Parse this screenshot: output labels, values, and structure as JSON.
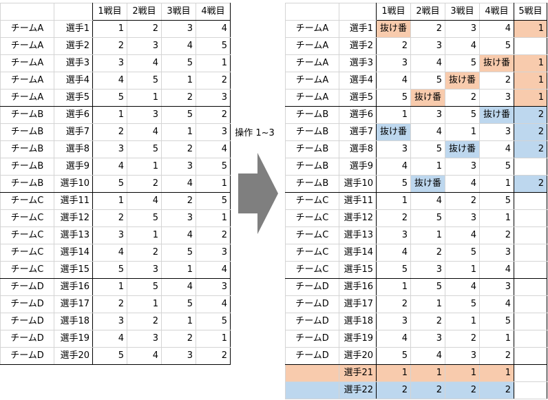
{
  "colors": {
    "orange": "#f8cbad",
    "blue": "#bdd7ee",
    "arrow": "#7f7f7f"
  },
  "headers": [
    "1戦目",
    "2戦目",
    "3戦目",
    "4戦目"
  ],
  "headers_right": [
    "1戦目",
    "2戦目",
    "3戦目",
    "4戦目",
    "5戦目"
  ],
  "operation_label": "操作 1~3",
  "arrow_icon": "right-arrow-icon",
  "left_rows": [
    [
      "チームA",
      "選手1",
      "1",
      "2",
      "3",
      "4"
    ],
    [
      "チームA",
      "選手2",
      "2",
      "3",
      "4",
      "5"
    ],
    [
      "チームA",
      "選手3",
      "3",
      "4",
      "5",
      "1"
    ],
    [
      "チームA",
      "選手4",
      "4",
      "5",
      "1",
      "2"
    ],
    [
      "チームA",
      "選手5",
      "5",
      "1",
      "2",
      "3"
    ],
    [
      "チームB",
      "選手6",
      "1",
      "3",
      "5",
      "2"
    ],
    [
      "チームB",
      "選手7",
      "2",
      "4",
      "1",
      "3"
    ],
    [
      "チームB",
      "選手8",
      "3",
      "5",
      "2",
      "4"
    ],
    [
      "チームB",
      "選手9",
      "4",
      "1",
      "3",
      "5"
    ],
    [
      "チームB",
      "選手10",
      "5",
      "2",
      "4",
      "1"
    ],
    [
      "チームC",
      "選手11",
      "1",
      "4",
      "2",
      "5"
    ],
    [
      "チームC",
      "選手12",
      "2",
      "5",
      "3",
      "1"
    ],
    [
      "チームC",
      "選手13",
      "3",
      "1",
      "4",
      "2"
    ],
    [
      "チームC",
      "選手14",
      "4",
      "2",
      "5",
      "3"
    ],
    [
      "チームC",
      "選手15",
      "5",
      "3",
      "1",
      "4"
    ],
    [
      "チームD",
      "選手16",
      "1",
      "5",
      "4",
      "3"
    ],
    [
      "チームD",
      "選手17",
      "2",
      "1",
      "5",
      "4"
    ],
    [
      "チームD",
      "選手18",
      "3",
      "2",
      "1",
      "5"
    ],
    [
      "チームD",
      "選手19",
      "4",
      "3",
      "2",
      "1"
    ],
    [
      "チームD",
      "選手20",
      "5",
      "4",
      "3",
      "2"
    ]
  ],
  "right_rows": [
    [
      "チームA",
      "選手1",
      "抜け番",
      "2",
      "3",
      "4",
      "1"
    ],
    [
      "チームA",
      "選手2",
      "2",
      "3",
      "4",
      "5",
      ""
    ],
    [
      "チームA",
      "選手3",
      "3",
      "4",
      "5",
      "抜け番",
      "1"
    ],
    [
      "チームA",
      "選手4",
      "4",
      "5",
      "抜け番",
      "2",
      "1"
    ],
    [
      "チームA",
      "選手5",
      "5",
      "抜け番",
      "2",
      "3",
      "1"
    ],
    [
      "チームB",
      "選手6",
      "1",
      "3",
      "5",
      "抜け番",
      "2"
    ],
    [
      "チームB",
      "選手7",
      "抜け番",
      "4",
      "1",
      "3",
      "2"
    ],
    [
      "チームB",
      "選手8",
      "3",
      "5",
      "抜け番",
      "4",
      "2"
    ],
    [
      "チームB",
      "選手9",
      "4",
      "1",
      "3",
      "5",
      ""
    ],
    [
      "チームB",
      "選手10",
      "5",
      "抜け番",
      "4",
      "1",
      "2"
    ],
    [
      "チームC",
      "選手11",
      "1",
      "4",
      "2",
      "5",
      ""
    ],
    [
      "チームC",
      "選手12",
      "2",
      "5",
      "3",
      "1",
      ""
    ],
    [
      "チームC",
      "選手13",
      "3",
      "1",
      "4",
      "2",
      ""
    ],
    [
      "チームC",
      "選手14",
      "4",
      "2",
      "5",
      "3",
      ""
    ],
    [
      "チームC",
      "選手15",
      "5",
      "3",
      "1",
      "4",
      ""
    ],
    [
      "チームD",
      "選手16",
      "1",
      "5",
      "4",
      "3",
      ""
    ],
    [
      "チームD",
      "選手17",
      "2",
      "1",
      "5",
      "4",
      ""
    ],
    [
      "チームD",
      "選手18",
      "3",
      "2",
      "1",
      "5",
      ""
    ],
    [
      "チームD",
      "選手19",
      "4",
      "3",
      "2",
      "1",
      ""
    ],
    [
      "チームD",
      "選手20",
      "5",
      "4",
      "3",
      "2",
      ""
    ],
    [
      "",
      "選手21",
      "1",
      "1",
      "1",
      "1",
      ""
    ],
    [
      "",
      "選手22",
      "2",
      "2",
      "2",
      "2",
      ""
    ]
  ]
}
